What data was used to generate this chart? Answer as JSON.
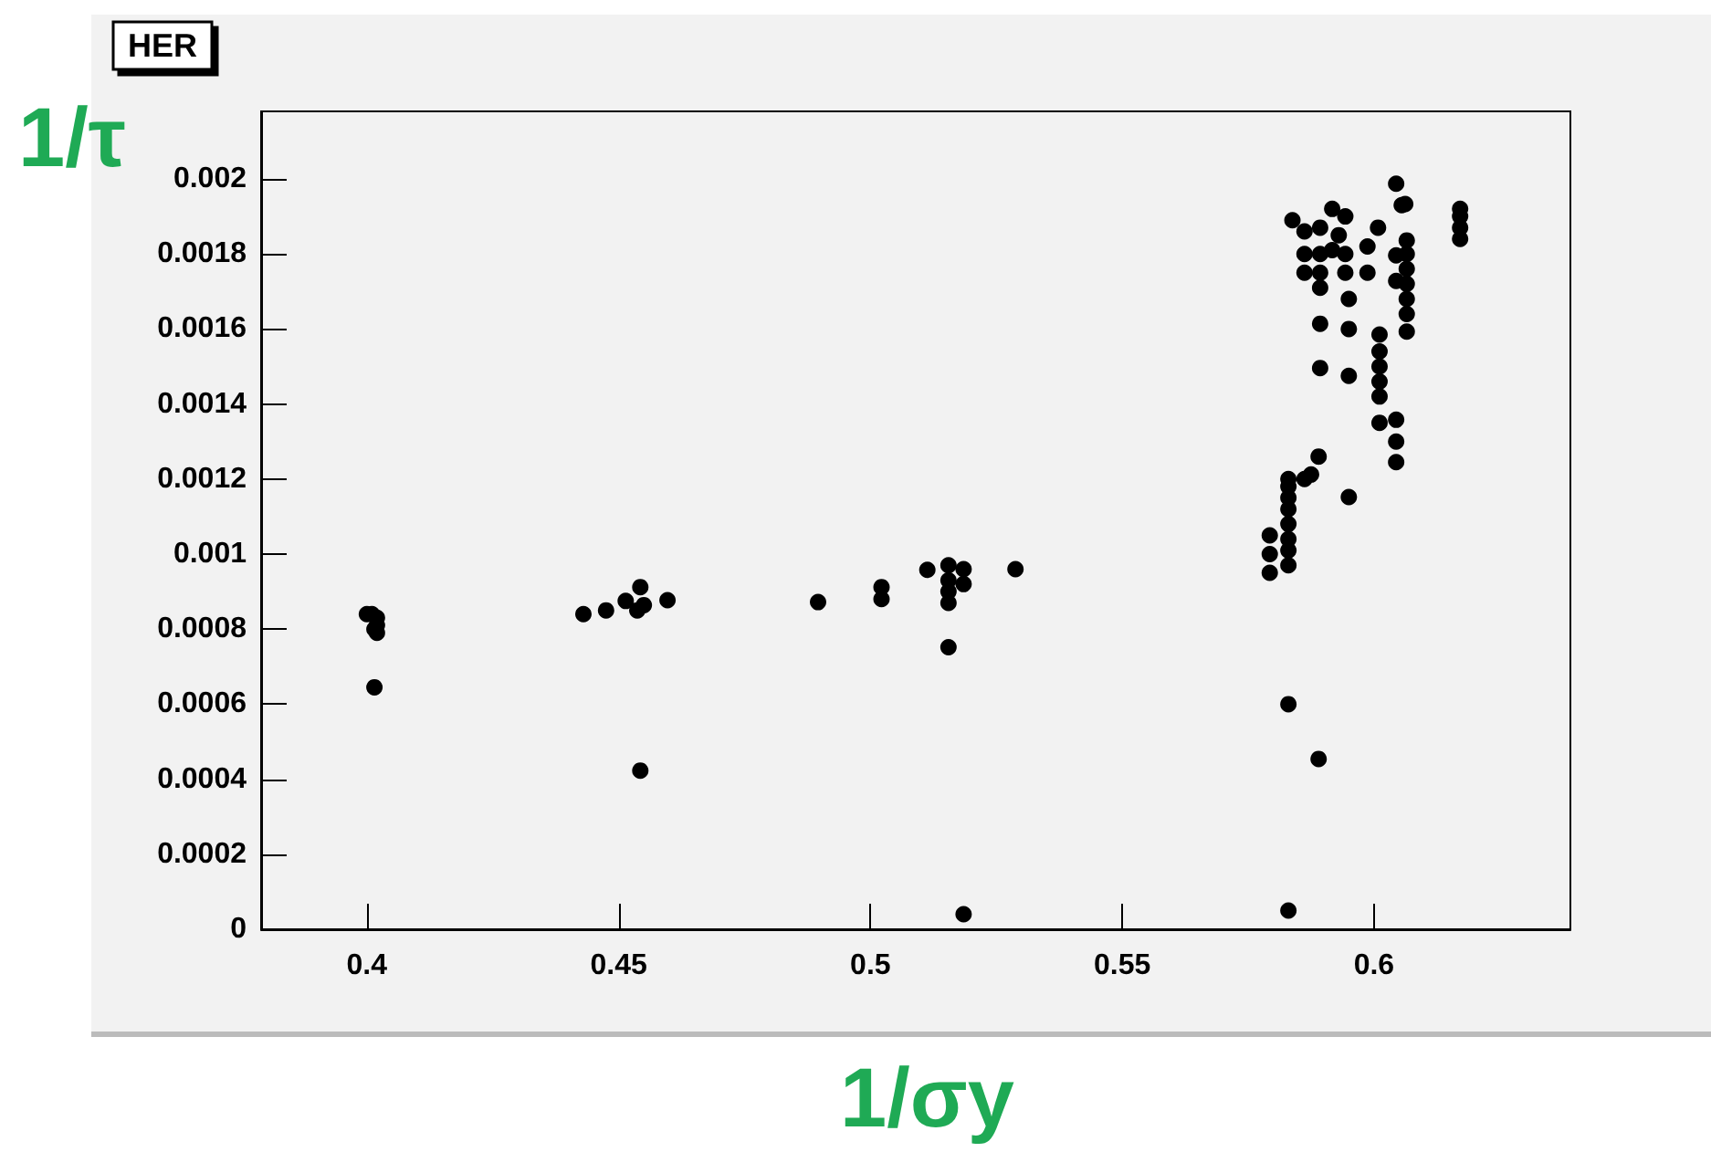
{
  "chart_data": {
    "type": "scatter",
    "title": "HER",
    "xlabel": "1/σy",
    "ylabel": "1/τ",
    "xlim": [
      0.379,
      0.639
    ],
    "ylim": [
      0,
      0.00218
    ],
    "xticks": [
      0.4,
      0.45,
      0.5,
      0.55,
      0.6
    ],
    "yticks": [
      0,
      0.0002,
      0.0004,
      0.0006,
      0.0008,
      0.001,
      0.0012,
      0.0014,
      0.0016,
      0.0018,
      0.002
    ],
    "grid": false,
    "marker": "circle",
    "series": [
      {
        "color": "#000000",
        "x": [
          0.4,
          0.401,
          0.402,
          0.402,
          0.402,
          0.4015,
          0.4015,
          0.443,
          0.4475,
          0.4514,
          0.4543,
          0.455,
          0.4537,
          0.4597,
          0.4543,
          0.4896,
          0.5022,
          0.5022,
          0.5113,
          0.5155,
          0.5155,
          0.5155,
          0.5155,
          0.5185,
          0.5185,
          0.5155,
          0.5185,
          0.5288,
          0.6044,
          0.6062,
          0.6055,
          0.6171,
          0.6171,
          0.6171,
          0.6171,
          0.5838,
          0.5862,
          0.5862,
          0.5862,
          0.5893,
          0.5893,
          0.5893,
          0.5893,
          0.5893,
          0.5893,
          0.5917,
          0.5917,
          0.593,
          0.5943,
          0.5943,
          0.5943,
          0.595,
          0.595,
          0.595,
          0.5987,
          0.5987,
          0.6008,
          0.6044,
          0.6044,
          0.6065,
          0.6065,
          0.6065,
          0.6065,
          0.6065,
          0.6065,
          0.6065,
          0.6011,
          0.6011,
          0.6011,
          0.6011,
          0.6011,
          0.6011,
          0.6044,
          0.6044,
          0.6044,
          0.589,
          0.5875,
          0.5862,
          0.595,
          0.583,
          0.583,
          0.583,
          0.583,
          0.583,
          0.583,
          0.583,
          0.583,
          0.5793,
          0.5793,
          0.5793,
          0.583,
          0.589,
          0.583
        ],
        "values": [
          0.00084,
          0.00084,
          0.00083,
          0.00081,
          0.00079,
          0.0008,
          0.000645,
          0.00084,
          0.00085,
          0.000875,
          0.000912,
          0.000864,
          0.00085,
          0.000877,
          0.000423,
          0.000872,
          0.000912,
          0.00088,
          0.000958,
          0.00097,
          0.00093,
          0.0009,
          0.00087,
          0.00096,
          0.00092,
          0.000752,
          4e-05,
          0.00096,
          0.001987,
          0.001933,
          0.00193,
          0.00192,
          0.0019,
          0.00187,
          0.00184,
          0.00189,
          0.00186,
          0.0018,
          0.00175,
          0.00187,
          0.0018,
          0.00175,
          0.00171,
          0.001614,
          0.001496,
          0.00192,
          0.00181,
          0.00185,
          0.0019,
          0.0018,
          0.00175,
          0.00168,
          0.0016,
          0.001475,
          0.00182,
          0.00175,
          0.00187,
          0.001796,
          0.001728,
          0.001836,
          0.0018,
          0.00176,
          0.00172,
          0.00168,
          0.00164,
          0.001593,
          0.001585,
          0.00154,
          0.0015,
          0.00146,
          0.00142,
          0.00135,
          0.001358,
          0.0013,
          0.001245,
          0.00126,
          0.001212,
          0.0012,
          0.001152,
          0.0012,
          0.00118,
          0.00115,
          0.00112,
          0.00108,
          0.00104,
          0.00101,
          0.00097,
          0.00105,
          0.001,
          0.00095,
          0.0006,
          0.000454,
          5e-05
        ]
      }
    ]
  }
}
